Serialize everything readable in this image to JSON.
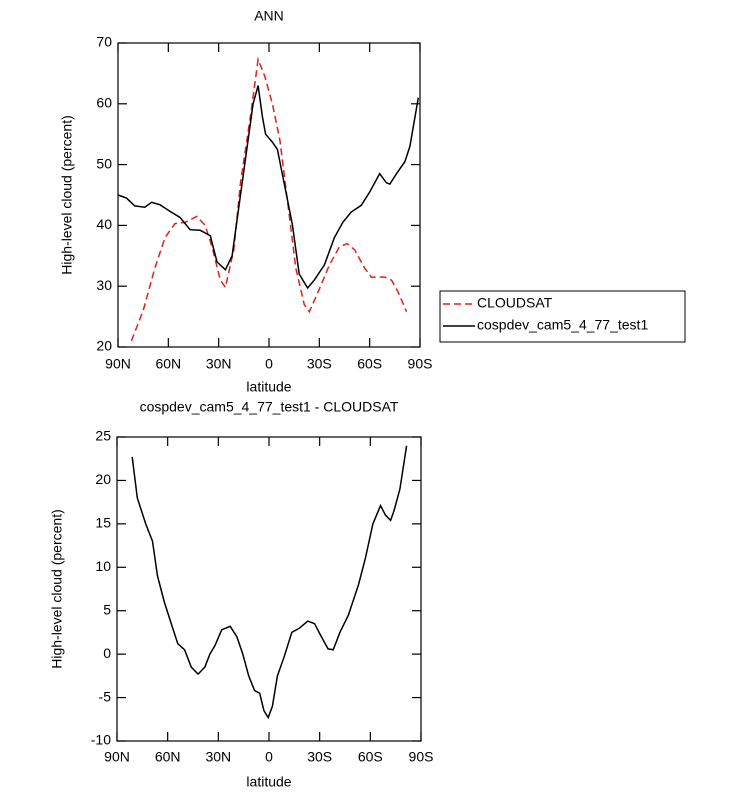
{
  "chart_data": [
    {
      "type": "line",
      "title": "ANN",
      "xlabel": "latitude",
      "ylabel": "High-level cloud (percent)",
      "xlim": [
        90,
        -90
      ],
      "xticks": [
        {
          "value": 90,
          "label": "90N"
        },
        {
          "value": 60,
          "label": "60N"
        },
        {
          "value": 30,
          "label": "30N"
        },
        0,
        {
          "value": -30,
          "label": "30S"
        },
        {
          "value": -60,
          "label": "60S"
        },
        {
          "value": -90,
          "label": "90S"
        }
      ],
      "ylim": [
        20,
        70
      ],
      "yticks": [
        20,
        30,
        40,
        50,
        60,
        70
      ],
      "legend": "right",
      "series": [
        {
          "name": "CLOUDSAT",
          "color": "#e0201b",
          "linestyle": "dashed",
          "x": [
            82,
            75,
            68,
            62,
            56,
            50,
            43,
            38,
            34,
            29,
            26,
            21,
            17,
            11,
            6.5,
            2.5,
            -2,
            -6.5,
            -11,
            -16,
            -21,
            -24,
            -30,
            -36,
            -42,
            -46.5,
            -51,
            -57,
            -61,
            -69,
            -73,
            -77,
            -82
          ],
          "values": [
            21,
            26,
            33,
            38,
            40.3,
            40.5,
            41.5,
            40,
            36.5,
            31,
            29.8,
            36,
            47,
            58,
            67.3,
            64.5,
            60,
            54,
            44,
            33,
            27,
            25.8,
            29.5,
            33.5,
            36.5,
            37,
            36,
            33,
            31.5,
            31.5,
            31,
            29,
            25.8
          ]
        },
        {
          "name": "cospdev_cam5_4_77_test1",
          "color": "#000000",
          "linestyle": "solid",
          "x": [
            90,
            85,
            80,
            74,
            70,
            65,
            59,
            53,
            47,
            41,
            35,
            31,
            26,
            22,
            17,
            12,
            9.5,
            6.5,
            4,
            2,
            -2,
            -5,
            -9,
            -14,
            -18,
            -23,
            -27,
            -33,
            -39,
            -44,
            -49,
            -55,
            -60,
            -66,
            -70,
            -72,
            -76,
            -81,
            -84,
            -89
          ],
          "values": [
            45,
            44.5,
            43.2,
            43,
            43.8,
            43.4,
            42.3,
            41.3,
            39.3,
            39.2,
            38.3,
            34,
            32.7,
            35,
            45,
            55,
            60,
            63,
            58,
            55,
            53.7,
            52.5,
            47,
            40,
            32,
            29.7,
            31,
            33.5,
            38,
            40.5,
            42.2,
            43.3,
            45.5,
            48.5,
            47,
            46.8,
            48.5,
            50.5,
            53,
            61
          ]
        }
      ]
    },
    {
      "type": "line",
      "title": "cospdev_cam5_4_77_test1 - CLOUDSAT",
      "xlabel": "latitude",
      "ylabel": "High-level cloud (percent)",
      "xlim": [
        90,
        -90
      ],
      "xticks": [
        {
          "value": 90,
          "label": "90N"
        },
        {
          "value": 60,
          "label": "60N"
        },
        {
          "value": 30,
          "label": "30N"
        },
        0,
        {
          "value": -30,
          "label": "30S"
        },
        {
          "value": -60,
          "label": "60S"
        },
        {
          "value": -90,
          "label": "90S"
        }
      ],
      "ylim": [
        -10,
        25
      ],
      "yticks": [
        -10,
        -5,
        0,
        5,
        10,
        15,
        20,
        25
      ],
      "color": "#000000",
      "x": [
        81,
        78,
        73,
        69,
        66,
        62,
        57,
        54,
        50,
        46,
        42,
        38,
        35,
        32,
        28,
        23,
        19,
        15.5,
        12,
        8.5,
        5.5,
        3,
        0.5,
        -2,
        -5,
        -9,
        -13.5,
        -18,
        -23,
        -27,
        -31,
        -35,
        -38,
        -42,
        -47,
        -53,
        -57,
        -61.5,
        -66,
        -69,
        -72,
        -74,
        -77.5,
        -81.5
      ],
      "values": [
        22.7,
        18,
        15,
        13,
        9,
        6,
        3,
        1.2,
        0.5,
        -1.5,
        -2.3,
        -1.5,
        0,
        1,
        2.8,
        3.2,
        2,
        0,
        -2.5,
        -4.2,
        -4.5,
        -6.5,
        -7.3,
        -6,
        -2.5,
        -0.3,
        2.5,
        3,
        3.8,
        3.5,
        2,
        0.6,
        0.5,
        2.5,
        4.5,
        8,
        11,
        15,
        17.1,
        16,
        15.4,
        16.5,
        19,
        24
      ]
    }
  ]
}
